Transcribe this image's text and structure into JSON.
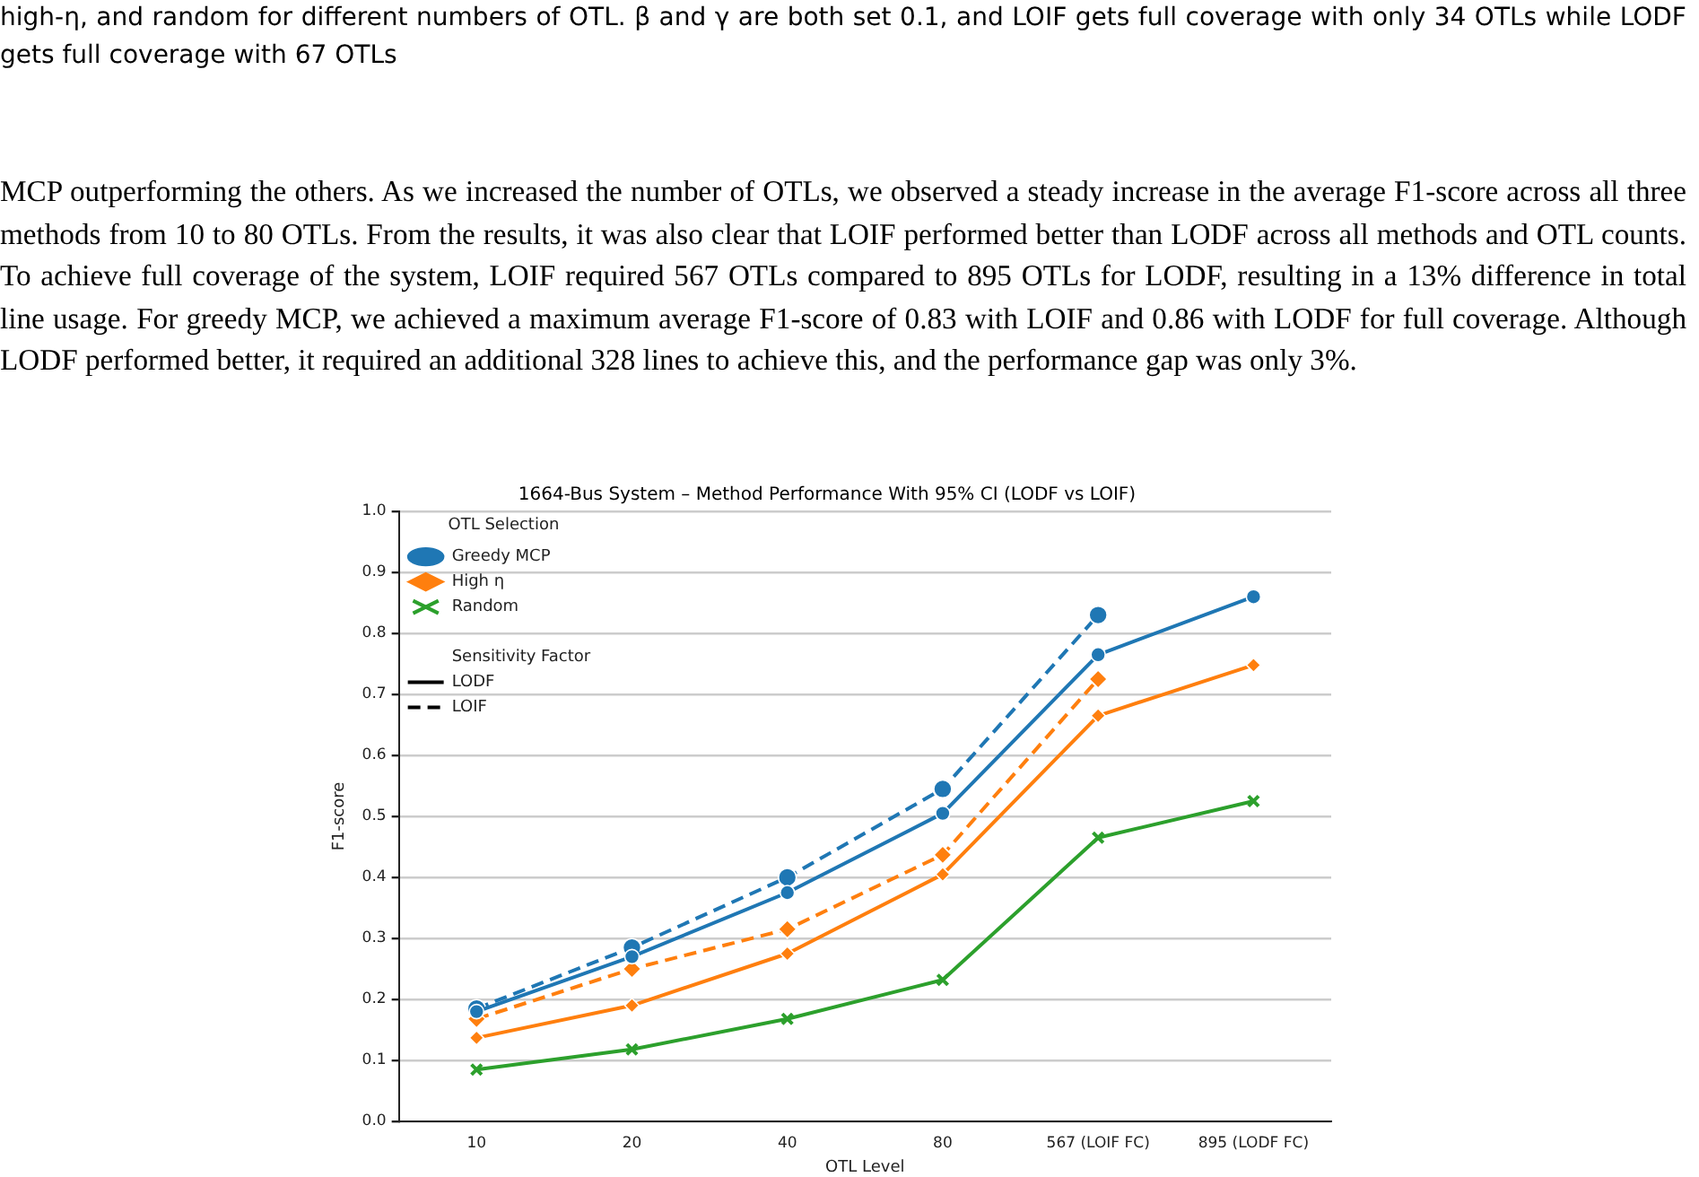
{
  "chart_data": {
    "type": "line",
    "title": "1664-Bus System – Method Performance With 95% CI (LODF vs LOIF)",
    "xlabel": "OTL Level",
    "ylabel": "F1-score",
    "categories": [
      "10",
      "20",
      "40",
      "80",
      "567 (LOIF FC)",
      "895 (LODF FC)"
    ],
    "ylim": [
      0,
      1
    ],
    "yticks": [
      {
        "value": 0,
        "label": "0.0"
      },
      0.1,
      0.2,
      0.3,
      0.4,
      0.5,
      0.6,
      0.7,
      0.8,
      0.9,
      {
        "value": 1,
        "label": "1.0"
      }
    ],
    "grid": "y",
    "legend": "top left",
    "legend_title": "OTL Selection",
    "series": [
      {
        "name": "Greedy MCP",
        "color": "#1f77b4",
        "marker": "circle",
        "line_style": "solid",
        "values": [
          0.18,
          0.27,
          0.375,
          0.505,
          0.765,
          0.86
        ]
      },
      {
        "name": "High η",
        "color": "#ff7f0e",
        "marker": "diamond",
        "line_style": "solid",
        "values": [
          0.137,
          0.19,
          0.275,
          0.405,
          0.665,
          0.748
        ]
      },
      {
        "name": "Random",
        "color": "#2ca02c",
        "marker": "cross",
        "line_style": "solid",
        "values": [
          0.085,
          0.118,
          0.168,
          0.232,
          0.465,
          0.525
        ]
      },
      {
        "color": "#1f77b4",
        "marker": "circle",
        "line_style": "dashed",
        "values": [
          0.185,
          0.285,
          0.4,
          0.545,
          0.83,
          null
        ]
      },
      {
        "color": "#ff7f0e",
        "marker": "diamond",
        "line_style": "dashed",
        "values": [
          0.168,
          0.25,
          0.315,
          0.437,
          0.725,
          null
        ]
      }
    ],
    "annotations": [
      "high-η, and random for different numbers of OTL. β and γ are both set 0.1, and LOIF gets full coverage with only 34 OTLs while LODF gets full coverage with 67 OTLs",
      "MCP outperforming the others. As we increased the number of OTLs, we observed a steady increase in the average F1-score across all three methods from 10 to 80 OTLs. From the results, it was also clear that LOIF performed better than LODF across all methods and OTL counts. To achieve full coverage of the system, LOIF required 567 OTLs compared to 895 OTLs for LODF, resulting in a 13% difference in total line usage. For greedy MCP, we achieved a maximum average F1-score of 0.83 with LOIF and 0.86 with LODF for full coverage. Although LODF performed better, it required an additional 328 lines to achieve this, and the performance gap was only 3%.",
      "Sensitivity Factor",
      "LODF",
      "LOIF"
    ]
  }
}
